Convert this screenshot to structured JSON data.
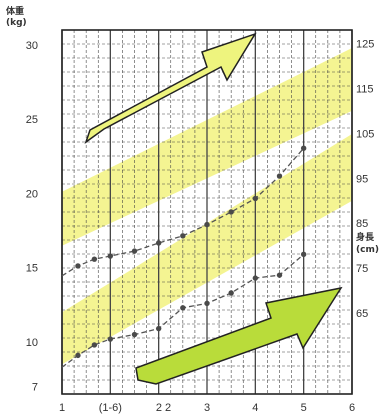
{
  "chart_data": {
    "type": "line",
    "title": "",
    "left_axis": {
      "label": "体重",
      "unit": "(kg)",
      "ticks": [
        7,
        10,
        15,
        20,
        25,
        30
      ],
      "ylim": [
        6.5,
        31
      ]
    },
    "right_axis": {
      "label": "身長",
      "unit": "(cm)",
      "ticks": [
        65,
        75,
        85,
        95,
        105,
        115,
        125
      ],
      "ylim": [
        47,
        128
      ]
    },
    "x_axis": {
      "label": "",
      "ticks": [
        "1",
        "(1-6)",
        "2 2",
        "3",
        "4",
        "5",
        "6"
      ],
      "xlim": [
        0,
        6
      ]
    },
    "grid": true,
    "colors": {
      "band": "#f0f06e",
      "line": "#555555",
      "marker": "#4a4a4a",
      "arrow_fill": "#eef47e",
      "arrow_fill_dark": "#b9dc3a",
      "arrow_stroke": "#222222"
    },
    "percentile_bands": [
      {
        "name": "",
        "axis": "right",
        "x": [
          0,
          6
        ],
        "lower": [
          80,
          110
        ],
        "upper": [
          92,
          124
        ]
      },
      {
        "name": "",
        "axis": "left",
        "x": [
          0,
          6
        ],
        "lower": [
          8.5,
          19.5
        ],
        "upper": [
          12,
          24
        ]
      }
    ],
    "series": [
      {
        "name": "",
        "axis": "right",
        "x": [
          0,
          0.33,
          0.67,
          1.0,
          1.5,
          2.0,
          2.5,
          3.0,
          3.5,
          4.0,
          4.5,
          5.0
        ],
        "y": [
          73.3,
          75.5,
          77,
          77.7,
          78.8,
          80.6,
          82.2,
          84.7,
          87.5,
          90.5,
          95.5,
          101.7
        ]
      },
      {
        "name": "",
        "axis": "left",
        "x": [
          0,
          0.33,
          0.67,
          1.0,
          1.5,
          2.0,
          2.5,
          3.0,
          3.5,
          4.0,
          4.5,
          5.0
        ],
        "y": [
          8.3,
          9.1,
          9.8,
          10.2,
          10.5,
          10.9,
          12.3,
          12.6,
          13.3,
          14.3,
          14.5,
          15.9
        ]
      }
    ],
    "annotations": [
      "arrow-up-right",
      "arrow-up-right"
    ]
  }
}
